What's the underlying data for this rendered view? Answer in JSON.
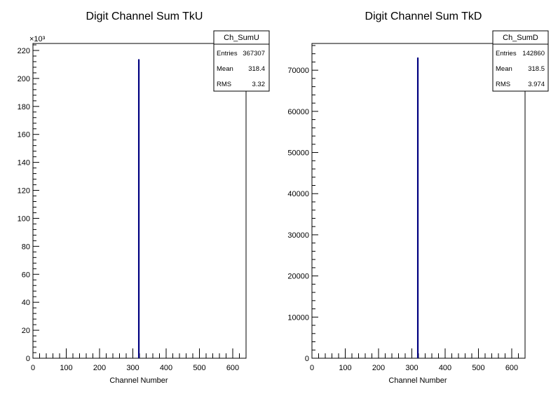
{
  "chart_data": [
    {
      "type": "bar",
      "title": "Digit Channel Sum TkU",
      "xlabel": "Channel Number",
      "ylabel": "",
      "xlim": [
        0,
        640
      ],
      "ylim": [
        0,
        225000
      ],
      "y_multiplier_label": "×10³",
      "x_ticks": [
        "0",
        "100",
        "200",
        "300",
        "400",
        "500",
        "600"
      ],
      "y_ticks": [
        "0",
        "20",
        "40",
        "60",
        "80",
        "100",
        "120",
        "140",
        "160",
        "180",
        "200",
        "220"
      ],
      "bins": [
        {
          "x": 318,
          "y": 213500
        }
      ],
      "line_color": "#000080",
      "stats": {
        "name": "Ch_SumU",
        "rows": [
          {
            "label": "Entries",
            "value": "367307"
          },
          {
            "label": "Mean",
            "value": "318.4"
          },
          {
            "label": "RMS",
            "value": "3.32"
          }
        ]
      }
    },
    {
      "type": "bar",
      "title": "Digit Channel Sum TkD",
      "xlabel": "Channel Number",
      "ylabel": "",
      "xlim": [
        0,
        640
      ],
      "ylim": [
        0,
        76500
      ],
      "x_ticks": [
        "0",
        "100",
        "200",
        "300",
        "400",
        "500",
        "600"
      ],
      "y_ticks": [
        "0",
        "10000",
        "20000",
        "30000",
        "40000",
        "50000",
        "60000",
        "70000"
      ],
      "bins": [
        {
          "x": 318,
          "y": 73000
        }
      ],
      "line_color": "#000080",
      "stats": {
        "name": "Ch_SumD",
        "rows": [
          {
            "label": "Entries",
            "value": "142860"
          },
          {
            "label": "Mean",
            "value": "318.5"
          },
          {
            "label": "RMS",
            "value": "3.974"
          }
        ]
      }
    }
  ]
}
